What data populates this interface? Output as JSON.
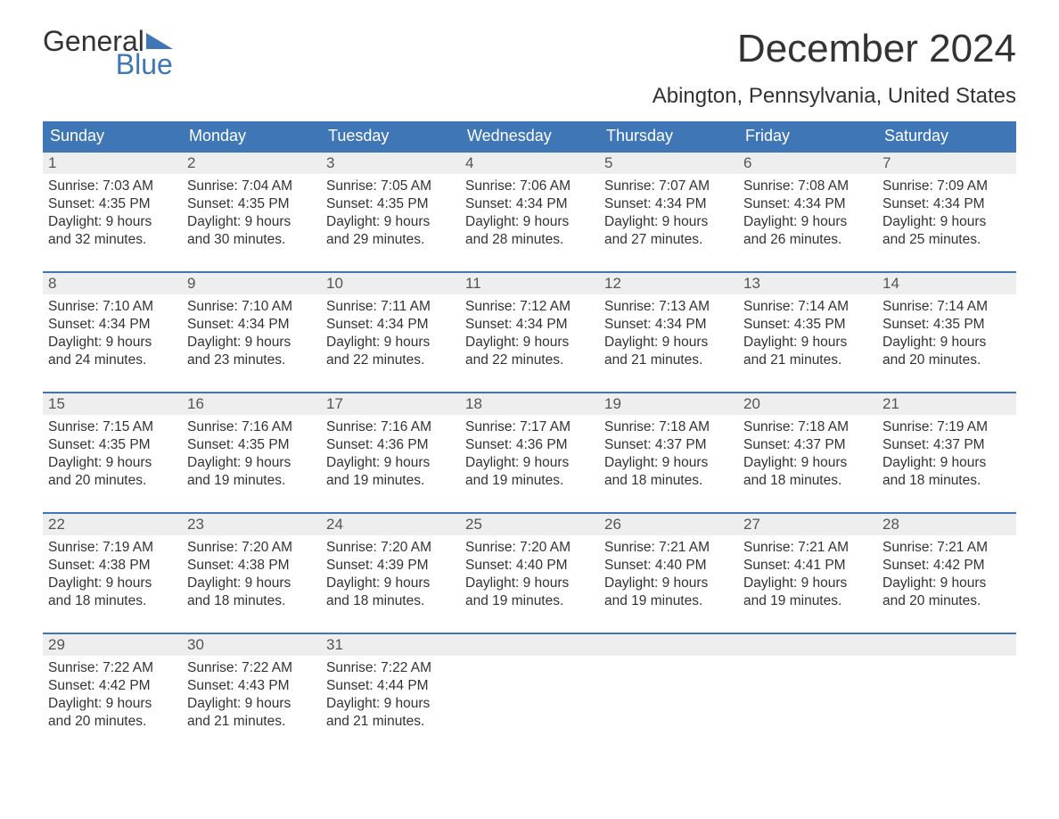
{
  "logo": {
    "word1": "General",
    "word2": "Blue"
  },
  "header": {
    "month_year": "December 2024",
    "location": "Abington, Pennsylvania, United States"
  },
  "colors": {
    "brand_blue": "#3f77b6",
    "header_bg": "#3f77b6",
    "daynum_bg": "#eeeeee",
    "text": "#333333",
    "page_bg": "#ffffff"
  },
  "weekdays": [
    "Sunday",
    "Monday",
    "Tuesday",
    "Wednesday",
    "Thursday",
    "Friday",
    "Saturday"
  ],
  "weeks": [
    [
      {
        "n": "1",
        "sunrise": "Sunrise: 7:03 AM",
        "sunset": "Sunset: 4:35 PM",
        "day1": "Daylight: 9 hours",
        "day2": "and 32 minutes."
      },
      {
        "n": "2",
        "sunrise": "Sunrise: 7:04 AM",
        "sunset": "Sunset: 4:35 PM",
        "day1": "Daylight: 9 hours",
        "day2": "and 30 minutes."
      },
      {
        "n": "3",
        "sunrise": "Sunrise: 7:05 AM",
        "sunset": "Sunset: 4:35 PM",
        "day1": "Daylight: 9 hours",
        "day2": "and 29 minutes."
      },
      {
        "n": "4",
        "sunrise": "Sunrise: 7:06 AM",
        "sunset": "Sunset: 4:34 PM",
        "day1": "Daylight: 9 hours",
        "day2": "and 28 minutes."
      },
      {
        "n": "5",
        "sunrise": "Sunrise: 7:07 AM",
        "sunset": "Sunset: 4:34 PM",
        "day1": "Daylight: 9 hours",
        "day2": "and 27 minutes."
      },
      {
        "n": "6",
        "sunrise": "Sunrise: 7:08 AM",
        "sunset": "Sunset: 4:34 PM",
        "day1": "Daylight: 9 hours",
        "day2": "and 26 minutes."
      },
      {
        "n": "7",
        "sunrise": "Sunrise: 7:09 AM",
        "sunset": "Sunset: 4:34 PM",
        "day1": "Daylight: 9 hours",
        "day2": "and 25 minutes."
      }
    ],
    [
      {
        "n": "8",
        "sunrise": "Sunrise: 7:10 AM",
        "sunset": "Sunset: 4:34 PM",
        "day1": "Daylight: 9 hours",
        "day2": "and 24 minutes."
      },
      {
        "n": "9",
        "sunrise": "Sunrise: 7:10 AM",
        "sunset": "Sunset: 4:34 PM",
        "day1": "Daylight: 9 hours",
        "day2": "and 23 minutes."
      },
      {
        "n": "10",
        "sunrise": "Sunrise: 7:11 AM",
        "sunset": "Sunset: 4:34 PM",
        "day1": "Daylight: 9 hours",
        "day2": "and 22 minutes."
      },
      {
        "n": "11",
        "sunrise": "Sunrise: 7:12 AM",
        "sunset": "Sunset: 4:34 PM",
        "day1": "Daylight: 9 hours",
        "day2": "and 22 minutes."
      },
      {
        "n": "12",
        "sunrise": "Sunrise: 7:13 AM",
        "sunset": "Sunset: 4:34 PM",
        "day1": "Daylight: 9 hours",
        "day2": "and 21 minutes."
      },
      {
        "n": "13",
        "sunrise": "Sunrise: 7:14 AM",
        "sunset": "Sunset: 4:35 PM",
        "day1": "Daylight: 9 hours",
        "day2": "and 21 minutes."
      },
      {
        "n": "14",
        "sunrise": "Sunrise: 7:14 AM",
        "sunset": "Sunset: 4:35 PM",
        "day1": "Daylight: 9 hours",
        "day2": "and 20 minutes."
      }
    ],
    [
      {
        "n": "15",
        "sunrise": "Sunrise: 7:15 AM",
        "sunset": "Sunset: 4:35 PM",
        "day1": "Daylight: 9 hours",
        "day2": "and 20 minutes."
      },
      {
        "n": "16",
        "sunrise": "Sunrise: 7:16 AM",
        "sunset": "Sunset: 4:35 PM",
        "day1": "Daylight: 9 hours",
        "day2": "and 19 minutes."
      },
      {
        "n": "17",
        "sunrise": "Sunrise: 7:16 AM",
        "sunset": "Sunset: 4:36 PM",
        "day1": "Daylight: 9 hours",
        "day2": "and 19 minutes."
      },
      {
        "n": "18",
        "sunrise": "Sunrise: 7:17 AM",
        "sunset": "Sunset: 4:36 PM",
        "day1": "Daylight: 9 hours",
        "day2": "and 19 minutes."
      },
      {
        "n": "19",
        "sunrise": "Sunrise: 7:18 AM",
        "sunset": "Sunset: 4:37 PM",
        "day1": "Daylight: 9 hours",
        "day2": "and 18 minutes."
      },
      {
        "n": "20",
        "sunrise": "Sunrise: 7:18 AM",
        "sunset": "Sunset: 4:37 PM",
        "day1": "Daylight: 9 hours",
        "day2": "and 18 minutes."
      },
      {
        "n": "21",
        "sunrise": "Sunrise: 7:19 AM",
        "sunset": "Sunset: 4:37 PM",
        "day1": "Daylight: 9 hours",
        "day2": "and 18 minutes."
      }
    ],
    [
      {
        "n": "22",
        "sunrise": "Sunrise: 7:19 AM",
        "sunset": "Sunset: 4:38 PM",
        "day1": "Daylight: 9 hours",
        "day2": "and 18 minutes."
      },
      {
        "n": "23",
        "sunrise": "Sunrise: 7:20 AM",
        "sunset": "Sunset: 4:38 PM",
        "day1": "Daylight: 9 hours",
        "day2": "and 18 minutes."
      },
      {
        "n": "24",
        "sunrise": "Sunrise: 7:20 AM",
        "sunset": "Sunset: 4:39 PM",
        "day1": "Daylight: 9 hours",
        "day2": "and 18 minutes."
      },
      {
        "n": "25",
        "sunrise": "Sunrise: 7:20 AM",
        "sunset": "Sunset: 4:40 PM",
        "day1": "Daylight: 9 hours",
        "day2": "and 19 minutes."
      },
      {
        "n": "26",
        "sunrise": "Sunrise: 7:21 AM",
        "sunset": "Sunset: 4:40 PM",
        "day1": "Daylight: 9 hours",
        "day2": "and 19 minutes."
      },
      {
        "n": "27",
        "sunrise": "Sunrise: 7:21 AM",
        "sunset": "Sunset: 4:41 PM",
        "day1": "Daylight: 9 hours",
        "day2": "and 19 minutes."
      },
      {
        "n": "28",
        "sunrise": "Sunrise: 7:21 AM",
        "sunset": "Sunset: 4:42 PM",
        "day1": "Daylight: 9 hours",
        "day2": "and 20 minutes."
      }
    ],
    [
      {
        "n": "29",
        "sunrise": "Sunrise: 7:22 AM",
        "sunset": "Sunset: 4:42 PM",
        "day1": "Daylight: 9 hours",
        "day2": "and 20 minutes."
      },
      {
        "n": "30",
        "sunrise": "Sunrise: 7:22 AM",
        "sunset": "Sunset: 4:43 PM",
        "day1": "Daylight: 9 hours",
        "day2": "and 21 minutes."
      },
      {
        "n": "31",
        "sunrise": "Sunrise: 7:22 AM",
        "sunset": "Sunset: 4:44 PM",
        "day1": "Daylight: 9 hours",
        "day2": "and 21 minutes."
      },
      null,
      null,
      null,
      null
    ]
  ]
}
